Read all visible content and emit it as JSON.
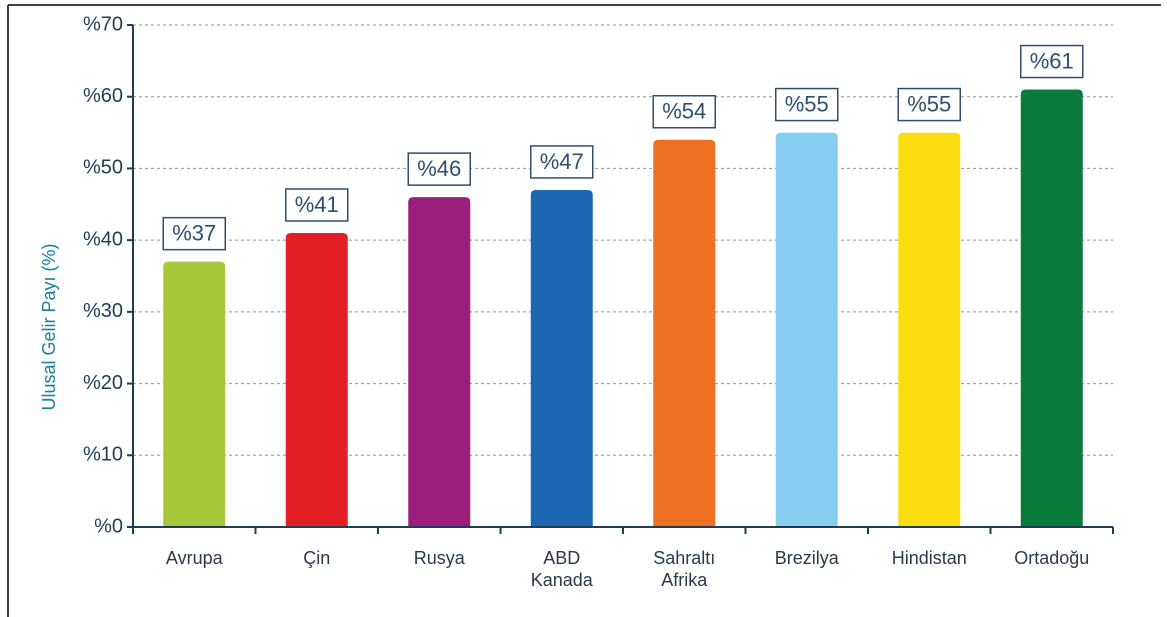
{
  "chart_data": {
    "type": "bar",
    "y_label": "Ulusal Gelir Payı (%)",
    "categories": [
      "Avrupa",
      "Çin",
      "Rusya",
      "ABD\nKanada",
      "Sahraltı\nAfrika",
      "Brezilya",
      "Hindistan",
      "Ortadoğu"
    ],
    "values": [
      37,
      41,
      46,
      47,
      54,
      55,
      55,
      61
    ],
    "value_labels": [
      "%37",
      "%41",
      "%46",
      "%47",
      "%54",
      "%55",
      "%55",
      "%61"
    ],
    "colors": [
      "#a8c83a",
      "#e21f26",
      "#9b1f7a",
      "#1d66b1",
      "#ee7023",
      "#86cdef",
      "#fadc11",
      "#0a7a3b"
    ],
    "ylim": [
      0,
      70
    ],
    "yticks": [
      {
        "value": 0,
        "label": "%0"
      },
      {
        "value": 10,
        "label": "%10"
      },
      {
        "value": 20,
        "label": "%20"
      },
      {
        "value": 30,
        "label": "%30"
      },
      {
        "value": 40,
        "label": "%40"
      },
      {
        "value": 50,
        "label": "%50"
      },
      {
        "value": 60,
        "label": "%60"
      },
      {
        "value": 70,
        "label": "%70"
      }
    ],
    "grid": true
  }
}
